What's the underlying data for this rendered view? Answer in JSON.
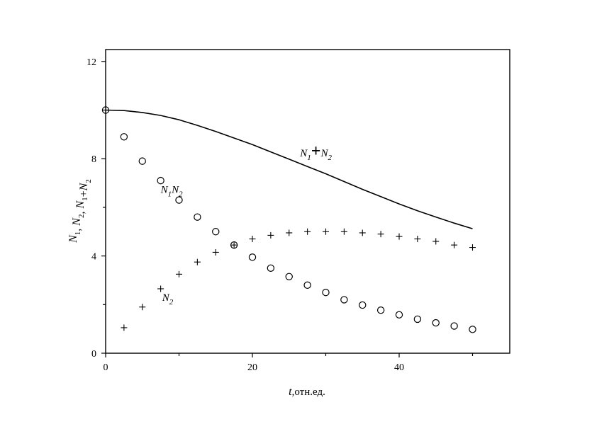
{
  "chart_data": {
    "type": "scatter",
    "xlabel": {
      "var": "t",
      "unit": ",отн.ед."
    },
    "ylabel": {
      "parts": [
        {
          "t": "N",
          "sub": "1"
        },
        {
          "t": ", "
        },
        {
          "t": "N",
          "sub": "2"
        },
        {
          "t": ", "
        },
        {
          "t": "N",
          "sub": "1"
        },
        {
          "t": "+"
        },
        {
          "t": "N",
          "sub": "2"
        }
      ]
    },
    "xlim": [
      0,
      55
    ],
    "ylim": [
      0,
      12.4
    ],
    "x_ticks": [
      0,
      20,
      40
    ],
    "y_ticks": [
      0,
      4,
      8,
      12
    ],
    "grid": false,
    "series": [
      {
        "name": "N1",
        "marker": "circle",
        "points": [
          [
            0,
            10.0
          ],
          [
            2.5,
            8.9
          ],
          [
            5,
            7.9
          ],
          [
            7.5,
            7.1
          ],
          [
            10,
            6.3
          ],
          [
            12.5,
            5.6
          ],
          [
            15,
            5.0
          ],
          [
            17.5,
            4.45
          ],
          [
            20,
            3.95
          ],
          [
            22.5,
            3.5
          ],
          [
            25,
            3.15
          ],
          [
            27.5,
            2.8
          ],
          [
            30,
            2.5
          ],
          [
            32.5,
            2.2
          ],
          [
            35,
            1.98
          ],
          [
            37.5,
            1.77
          ],
          [
            40,
            1.58
          ],
          [
            42.5,
            1.4
          ],
          [
            45,
            1.25
          ],
          [
            47.5,
            1.12
          ],
          [
            50,
            0.98
          ]
        ]
      },
      {
        "name": "N2",
        "marker": "plus",
        "points": [
          [
            2.5,
            1.05
          ],
          [
            5,
            1.9
          ],
          [
            7.5,
            2.65
          ],
          [
            10,
            3.25
          ],
          [
            12.5,
            3.75
          ],
          [
            15,
            4.15
          ],
          [
            17.5,
            4.45
          ],
          [
            20,
            4.7
          ],
          [
            22.5,
            4.85
          ],
          [
            25,
            4.95
          ],
          [
            27.5,
            5.0
          ],
          [
            30,
            5.0
          ],
          [
            32.5,
            5.0
          ],
          [
            35,
            4.95
          ],
          [
            37.5,
            4.9
          ],
          [
            40,
            4.8
          ],
          [
            42.5,
            4.7
          ],
          [
            45,
            4.6
          ],
          [
            47.5,
            4.45
          ],
          [
            50,
            4.35
          ]
        ]
      },
      {
        "name": "N1+N2",
        "marker": "line",
        "points": [
          [
            0,
            10.0
          ],
          [
            2.5,
            9.98
          ],
          [
            5,
            9.9
          ],
          [
            7.5,
            9.78
          ],
          [
            10,
            9.6
          ],
          [
            12.5,
            9.37
          ],
          [
            15,
            9.12
          ],
          [
            17.5,
            8.85
          ],
          [
            20,
            8.58
          ],
          [
            22.5,
            8.28
          ],
          [
            25,
            7.98
          ],
          [
            27.5,
            7.68
          ],
          [
            30,
            7.38
          ],
          [
            32.5,
            7.06
          ],
          [
            35,
            6.74
          ],
          [
            37.5,
            6.44
          ],
          [
            40,
            6.14
          ],
          [
            42.5,
            5.86
          ],
          [
            45,
            5.6
          ],
          [
            47.5,
            5.35
          ],
          [
            50,
            5.12
          ]
        ]
      }
    ],
    "annotations": [
      {
        "label": {
          "a": "N",
          "a_sub": "1",
          "b": "N",
          "b_sub": "2"
        },
        "x": 7.5,
        "y": 6.6
      },
      {
        "label": {
          "a": "N",
          "a_sub": "2"
        },
        "x": 7.7,
        "y": 2.15
      },
      {
        "label": {
          "a": "N",
          "a_sub": "1",
          "op": "+",
          "b": "N",
          "b_sub": "2"
        },
        "x": 26.5,
        "y": 8.1
      }
    ]
  }
}
